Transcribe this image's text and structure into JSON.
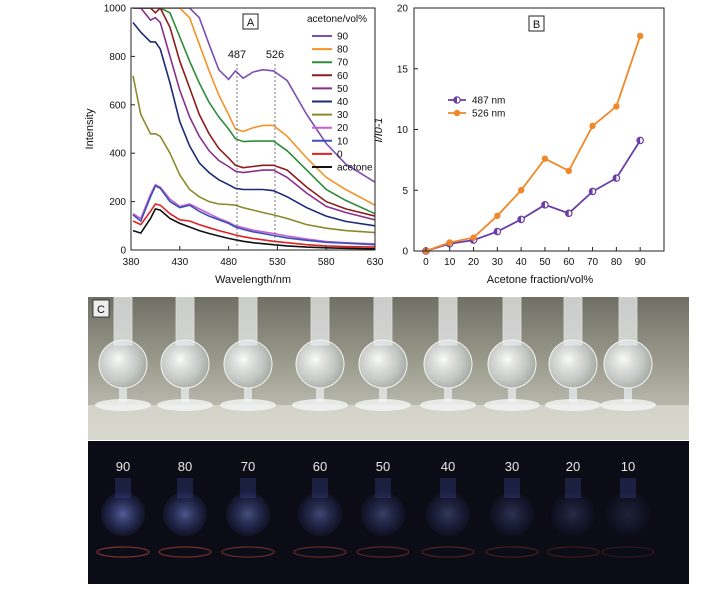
{
  "colors": {
    "s90": "#7b4fb5",
    "s80": "#f39326",
    "s70": "#2e8b3a",
    "s60": "#8e1c1c",
    "s50": "#8a2f8e",
    "s40": "#1d2a78",
    "s30": "#8a8a2a",
    "s20": "#c75fd0",
    "s10": "#3a52b8",
    "s0": "#e02222",
    "acetone": "#111111",
    "b487": "#6a3ea8",
    "b526": "#f0882a"
  },
  "panels": {
    "a": "A",
    "b": "B",
    "c": "C"
  },
  "peaks": [
    "487",
    "526"
  ],
  "photo_labels": [
    "90",
    "80",
    "70",
    "60",
    "50",
    "40",
    "30",
    "20",
    "10"
  ],
  "chart_data": [
    {
      "type": "line",
      "panel": "A",
      "xlabel": "Wavelength/nm",
      "ylabel": "Intensity",
      "xlim": [
        380,
        630
      ],
      "ylim": [
        0,
        1000
      ],
      "xticks": [
        380,
        430,
        480,
        530,
        580,
        630
      ],
      "yticks": [
        0,
        200,
        400,
        600,
        800,
        1000
      ],
      "legend_title": "acetone/vol%",
      "legend_position": "top-right",
      "annotations": [
        "487",
        "526"
      ],
      "x": [
        382,
        390,
        400,
        405,
        410,
        420,
        430,
        440,
        450,
        460,
        470,
        480,
        487,
        495,
        505,
        515,
        526,
        540,
        560,
        580,
        600,
        630
      ],
      "series": [
        {
          "name": "90",
          "color_key": "s90",
          "values": [
            1000,
            1000,
            1000,
            1000,
            1000,
            1000,
            1000,
            1000,
            960,
            850,
            745,
            705,
            740,
            710,
            735,
            745,
            740,
            700,
            560,
            440,
            355,
            280
          ]
        },
        {
          "name": "80",
          "color_key": "s80",
          "values": [
            1000,
            1000,
            1000,
            1000,
            1000,
            1000,
            1000,
            960,
            850,
            740,
            640,
            560,
            500,
            490,
            505,
            515,
            515,
            470,
            380,
            300,
            250,
            185
          ]
        },
        {
          "name": "70",
          "color_key": "s70",
          "values": [
            1000,
            1000,
            1000,
            1000,
            1000,
            980,
            880,
            780,
            690,
            610,
            550,
            500,
            460,
            448,
            450,
            450,
            450,
            410,
            330,
            250,
            205,
            150
          ]
        },
        {
          "name": "60",
          "color_key": "s60",
          "values": [
            1000,
            1000,
            1000,
            980,
            1000,
            920,
            780,
            670,
            560,
            480,
            420,
            380,
            350,
            340,
            345,
            350,
            350,
            330,
            260,
            200,
            170,
            140
          ]
        },
        {
          "name": "50",
          "color_key": "s50",
          "values": [
            1000,
            1000,
            950,
            960,
            940,
            800,
            660,
            550,
            470,
            410,
            370,
            345,
            325,
            320,
            325,
            330,
            330,
            300,
            235,
            180,
            155,
            125
          ]
        },
        {
          "name": "40",
          "color_key": "s40",
          "values": [
            940,
            900,
            860,
            860,
            830,
            690,
            530,
            430,
            360,
            320,
            290,
            270,
            255,
            250,
            250,
            250,
            245,
            220,
            175,
            140,
            118,
            100
          ]
        },
        {
          "name": "30",
          "color_key": "s30",
          "values": [
            720,
            560,
            480,
            480,
            470,
            400,
            310,
            250,
            220,
            200,
            190,
            188,
            185,
            175,
            165,
            155,
            145,
            130,
            105,
            90,
            80,
            72
          ]
        },
        {
          "name": "20",
          "color_key": "s20",
          "values": [
            150,
            130,
            230,
            270,
            260,
            210,
            180,
            190,
            170,
            150,
            130,
            115,
            100,
            92,
            82,
            75,
            68,
            58,
            45,
            35,
            30,
            25
          ]
        },
        {
          "name": "10",
          "color_key": "s10",
          "values": [
            145,
            120,
            220,
            265,
            255,
            200,
            175,
            185,
            160,
            140,
            125,
            110,
            95,
            85,
            75,
            68,
            60,
            50,
            40,
            32,
            28,
            22
          ]
        },
        {
          "name": "0",
          "color_key": "s0",
          "values": [
            120,
            105,
            160,
            190,
            185,
            150,
            125,
            120,
            105,
            92,
            80,
            70,
            62,
            55,
            48,
            42,
            36,
            30,
            22,
            17,
            14,
            12
          ]
        },
        {
          "name": "acetone",
          "color_key": "acetone",
          "values": [
            80,
            70,
            130,
            170,
            165,
            130,
            110,
            95,
            80,
            68,
            58,
            48,
            42,
            36,
            30,
            26,
            22,
            17,
            12,
            9,
            7,
            5
          ]
        }
      ]
    },
    {
      "type": "line",
      "panel": "B",
      "xlabel": "Acetone fraction/vol%",
      "ylabel": "I/I0-1",
      "xlim": [
        -5,
        100
      ],
      "ylim": [
        0,
        20
      ],
      "xticks": [
        0,
        10,
        20,
        30,
        40,
        50,
        60,
        70,
        80,
        90
      ],
      "yticks": [
        0,
        5,
        10,
        15,
        20
      ],
      "legend_position": "center-left",
      "x": [
        0,
        10,
        20,
        30,
        40,
        50,
        60,
        70,
        80,
        90
      ],
      "series": [
        {
          "name": "487 nm",
          "color_key": "b487",
          "marker": "half-filled-circle",
          "values": [
            0,
            0.6,
            0.9,
            1.6,
            2.6,
            3.8,
            3.1,
            4.9,
            6.0,
            9.1
          ]
        },
        {
          "name": "526 nm",
          "color_key": "b526",
          "marker": "filled-circle",
          "values": [
            0,
            0.7,
            1.1,
            2.9,
            5.0,
            7.6,
            6.6,
            10.3,
            11.9,
            17.7
          ]
        }
      ]
    }
  ]
}
